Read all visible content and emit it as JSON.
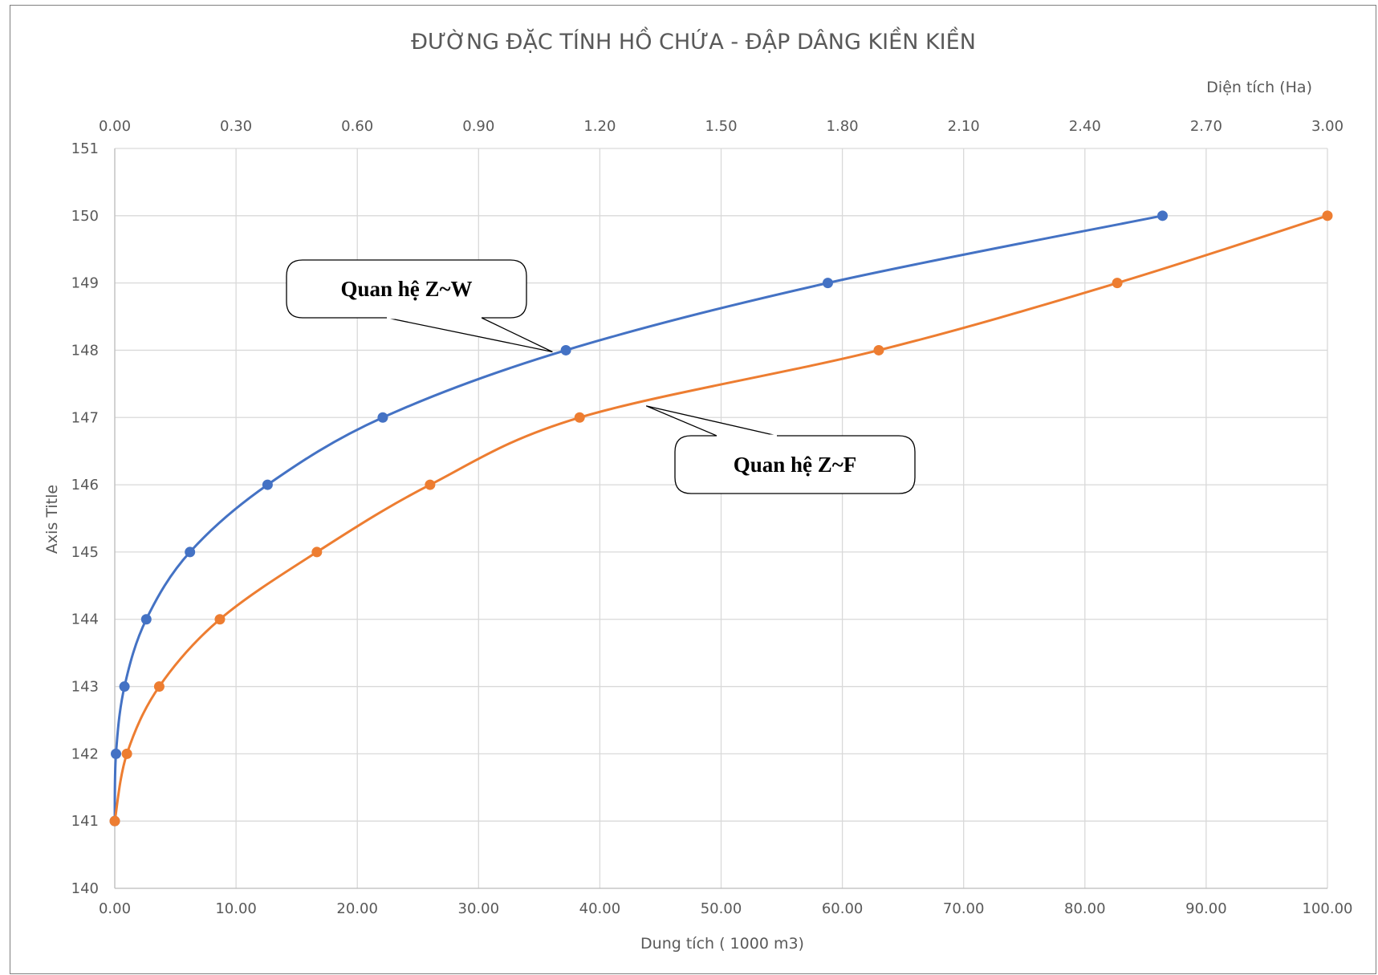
{
  "chart_data": {
    "type": "line",
    "title": "ĐƯỜNG ĐẶC TÍNH HỒ CHỨA - ĐẬP DÂNG KIỀN KIỀN",
    "xlabel": "Dung tích ( 1000 m3)",
    "x2label": "Diện tích (Ha)",
    "ylabel": "Axis Title",
    "xlim": [
      0,
      100
    ],
    "x2lim": [
      0,
      3
    ],
    "ylim": [
      140,
      151
    ],
    "x_ticks": [
      "0.00",
      "10.00",
      "20.00",
      "30.00",
      "40.00",
      "50.00",
      "60.00",
      "70.00",
      "80.00",
      "90.00",
      "100.00"
    ],
    "x2_ticks": [
      "0.00",
      "0.30",
      "0.60",
      "0.90",
      "1.20",
      "1.50",
      "1.80",
      "2.10",
      "2.40",
      "2.70",
      "3.00"
    ],
    "y_ticks": [
      "140",
      "141",
      "142",
      "143",
      "144",
      "145",
      "146",
      "147",
      "148",
      "149",
      "150",
      "151"
    ],
    "grid": true,
    "series": [
      {
        "key": "zw",
        "axis": "bottom",
        "color": "#4472c4",
        "x": [
          0.0,
          0.1,
          0.8,
          2.6,
          6.2,
          12.6,
          22.1,
          37.2,
          58.8,
          86.4
        ],
        "y": [
          141,
          142,
          143,
          144,
          145,
          146,
          147,
          148,
          149,
          150
        ]
      },
      {
        "key": "zf",
        "axis": "top",
        "color": "#ed7d31",
        "x": [
          0.0,
          0.03,
          0.11,
          0.26,
          0.5,
          0.78,
          1.15,
          1.89,
          2.48,
          3.0
        ],
        "y": [
          141,
          142,
          143,
          144,
          145,
          146,
          147,
          148,
          149,
          150
        ]
      }
    ],
    "annotations": [
      {
        "key": "zw",
        "text": "Quan hệ Z~W"
      },
      {
        "key": "zf",
        "text": "Quan hệ Z~F"
      }
    ]
  }
}
